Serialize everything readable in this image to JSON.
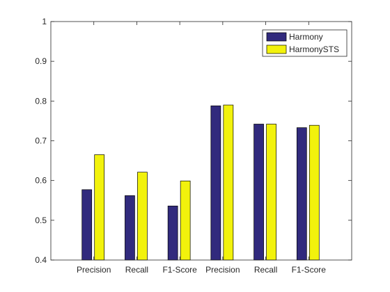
{
  "chart_data": {
    "type": "bar",
    "title": "",
    "xlabel": "",
    "ylabel": "",
    "categories": [
      "Precision",
      "Recall",
      "F1-Score",
      "Precision",
      "Recall",
      "F1-Score"
    ],
    "series": [
      {
        "name": "Harmony",
        "color": "#312a7d",
        "values": [
          0.577,
          0.562,
          0.536,
          0.788,
          0.742,
          0.733
        ]
      },
      {
        "name": "HarmonySTS",
        "color": "#f2f20c",
        "values": [
          0.665,
          0.621,
          0.599,
          0.79,
          0.742,
          0.739
        ]
      }
    ],
    "ylim": [
      0.4,
      1.0
    ],
    "yticks": [
      0.4,
      0.5,
      0.6,
      0.7,
      0.8,
      0.9,
      1.0
    ],
    "ytick_labels": [
      "0.4",
      "0.5",
      "0.6",
      "0.7",
      "0.8",
      "0.9",
      "1"
    ],
    "grid": false,
    "legend_position": "top-right"
  }
}
